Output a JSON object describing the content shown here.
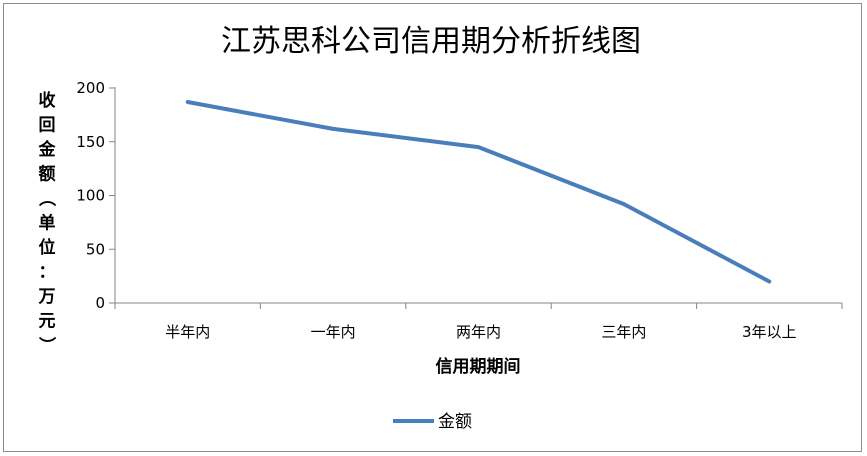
{
  "chart_data": {
    "type": "line",
    "title": "江苏思科公司信用期分析折线图",
    "xlabel": "信用期期间",
    "ylabel": "收回金额（单位：万元）",
    "categories": [
      "半年内",
      "一年内",
      "两年内",
      "三年内",
      "3年以上"
    ],
    "series": [
      {
        "name": "金额",
        "values": [
          187,
          162,
          145,
          92,
          20
        ],
        "color": "#4a7ebb"
      }
    ],
    "ylim": [
      0,
      200
    ],
    "yticks": [
      0,
      50,
      100,
      150,
      200
    ],
    "legend_position": "bottom",
    "grid": false
  }
}
